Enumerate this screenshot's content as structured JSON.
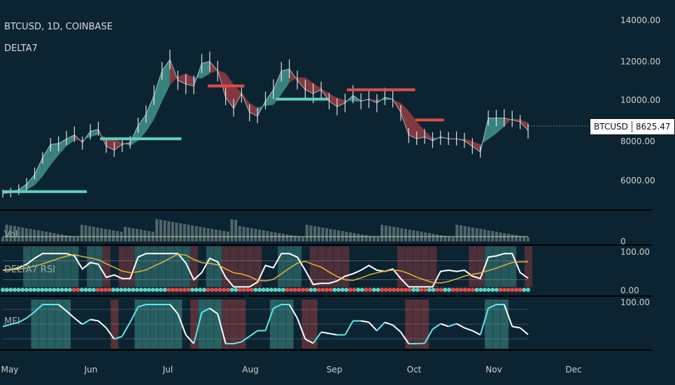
{
  "chart_data": {
    "type": "line",
    "symbol_title": "BTCUSD, 1D, COINBASE",
    "indicator_title": "DELTA7",
    "price_axis": [
      "14000.00",
      "12000.00",
      "10000.00",
      "8000.00",
      "6000.00"
    ],
    "price_ticks": [
      14000,
      12000,
      10000,
      8000,
      6000
    ],
    "ylim": [
      4500,
      15000
    ],
    "x_labels": [
      "May",
      "Jun",
      "Jul",
      "Aug",
      "Sep",
      "Oct",
      "Nov",
      "Dec"
    ],
    "last_price": {
      "symbol": "BTCUSD",
      "value": "8625.47"
    },
    "close_series": [
      5300,
      5350,
      5500,
      5800,
      6300,
      7200,
      7900,
      7950,
      8200,
      8400,
      8000,
      8600,
      8700,
      7800,
      7600,
      7900,
      8000,
      8900,
      9500,
      10500,
      11800,
      12400,
      11300,
      11100,
      11000,
      12200,
      12300,
      11800,
      10400,
      9800,
      10600,
      9600,
      9400,
      10200,
      10800,
      11800,
      11900,
      11300,
      10800,
      10600,
      10800,
      10200,
      9900,
      10100,
      10500,
      10200,
      10300,
      10100,
      10400,
      10300,
      9600,
      8400,
      8200,
      8300,
      8100,
      8300,
      8200,
      8200,
      8100,
      7800,
      7500,
      9300,
      9300,
      9300,
      9200,
      9100,
      8625
    ],
    "ma_lines": [
      {
        "y": 5400,
        "from": "May",
        "to_frac": 0.16,
        "color": "#5fd0c0"
      },
      {
        "y": 8200,
        "from_frac": 0.185,
        "to_frac": 0.34,
        "color": "#5fd0c0"
      },
      {
        "y": 11000,
        "from_frac": 0.39,
        "to_frac": 0.46,
        "color": "#e14a4a"
      },
      {
        "y": 10300,
        "from_frac": 0.52,
        "to_frac": 0.62,
        "color": "#5fd0c0"
      },
      {
        "y": 10800,
        "from_frac": 0.655,
        "to_frac": 0.785,
        "color": "#e14a4a"
      },
      {
        "y": 9200,
        "from_frac": 0.785,
        "to_frac": 0.84,
        "color": "#e14a4a"
      }
    ],
    "panes": [
      {
        "name": "Vol",
        "label": "Vol",
        "axis_top": "",
        "axis_bottom": "0"
      },
      {
        "name": "DELTA7 RSI",
        "label": "DELTA7 RSI",
        "axis_top": "100.00",
        "axis_bottom": "0.00"
      },
      {
        "name": "MFI",
        "label": "MFI",
        "axis_top": "100.00",
        "axis_bottom": ""
      }
    ],
    "colors": {
      "background": "#0c2431",
      "bull": "#5fd0c0",
      "bear": "#e14a4a",
      "candle": "#ffffff",
      "rsi": "#ffffff",
      "rsi_signal": "#e8b13a",
      "mfi": "#ffffff",
      "mfi_up": "#5fe8f0"
    }
  }
}
